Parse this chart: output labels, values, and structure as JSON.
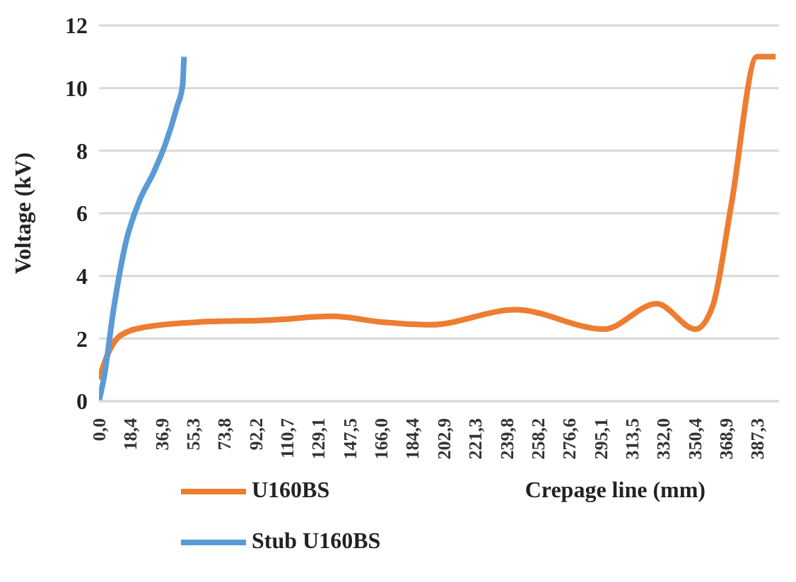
{
  "chart_data": {
    "type": "line",
    "xlabel": "Crepage line (mm)",
    "ylabel": "Voltage (kV)",
    "xlim": [
      0,
      400
    ],
    "xticks": [
      {
        "value": 0,
        "label": "0,0"
      },
      {
        "value": 18.4,
        "label": "18,4"
      },
      {
        "value": 36.9,
        "label": "36,9"
      },
      {
        "value": 55.3,
        "label": "55,3"
      },
      {
        "value": 73.8,
        "label": "73,8"
      },
      {
        "value": 92.2,
        "label": "92,2"
      },
      {
        "value": 110.7,
        "label": "110,7"
      },
      {
        "value": 129.1,
        "label": "129,1"
      },
      {
        "value": 147.5,
        "label": "147,5"
      },
      {
        "value": 166.0,
        "label": "166,0"
      },
      {
        "value": 184.4,
        "label": "184,4"
      },
      {
        "value": 202.9,
        "label": "202,9"
      },
      {
        "value": 221.3,
        "label": "221,3"
      },
      {
        "value": 239.8,
        "label": "239,8"
      },
      {
        "value": 258.2,
        "label": "258,2"
      },
      {
        "value": 276.6,
        "label": "276,6"
      },
      {
        "value": 295.1,
        "label": "295,1"
      },
      {
        "value": 313.5,
        "label": "313,5"
      },
      {
        "value": 332.0,
        "label": "332,0"
      },
      {
        "value": 350.4,
        "label": "350,4"
      },
      {
        "value": 368.9,
        "label": "368,9"
      },
      {
        "value": 387.3,
        "label": "387,3"
      }
    ],
    "ylim": [
      0,
      12
    ],
    "yticks": [
      0,
      2,
      4,
      6,
      8,
      10,
      12
    ],
    "grid": "y",
    "legend": "bottom left",
    "marker": "none",
    "line_style": "solid",
    "series": [
      {
        "name": "U160BS",
        "color": "#ed7d31",
        "x": [
          0,
          4.4,
          12.7,
          26.5,
          59.7,
          101,
          137,
          167.5,
          195,
          245,
          297,
          328,
          351,
          361,
          372,
          387,
          398
        ],
        "values": [
          0.7,
          1.4,
          2.1,
          2.36,
          2.53,
          2.59,
          2.71,
          2.52,
          2.44,
          2.92,
          2.3,
          3.11,
          2.3,
          3.04,
          6.3,
          11,
          11
        ]
      },
      {
        "name": "Stub U160BS",
        "color": "#5b9bd5",
        "x": [
          0,
          3.1,
          8.5,
          15.5,
          23.8,
          32.1,
          39,
          45.9,
          49.2,
          50
        ],
        "values": [
          0,
          0.8,
          2.9,
          5.0,
          6.4,
          7.3,
          8.2,
          9.4,
          10.1,
          11
        ]
      }
    ]
  }
}
